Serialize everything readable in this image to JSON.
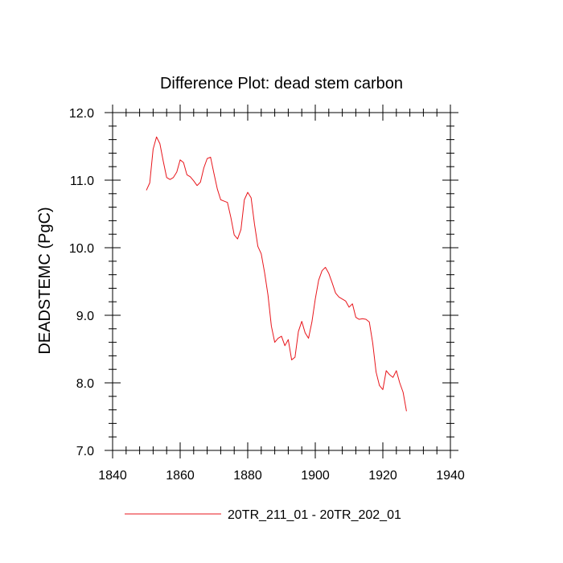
{
  "chart_data": {
    "type": "line",
    "title": "Difference Plot: dead stem carbon",
    "xlabel": "",
    "ylabel": "DEADSTEMC  (PgC)",
    "xlim": [
      1840,
      1940
    ],
    "ylim": [
      7.0,
      12.0
    ],
    "x_ticks": [
      1840,
      1860,
      1880,
      1900,
      1920,
      1940
    ],
    "x_tick_labels": [
      "1840",
      "1860",
      "1880",
      "1900",
      "1920",
      "1940"
    ],
    "y_ticks": [
      7.0,
      8.0,
      9.0,
      10.0,
      11.0,
      12.0
    ],
    "y_tick_labels": [
      "7.0",
      "8.0",
      "9.0",
      "10.0",
      "11.0",
      "12.0"
    ],
    "grid": false,
    "legend_position": "bottom-center",
    "series": [
      {
        "name": "20TR_211_01 - 20TR_202_01",
        "color": "#e8161c",
        "x": [
          1850,
          1851,
          1852,
          1853,
          1854,
          1855,
          1856,
          1857,
          1858,
          1859,
          1860,
          1861,
          1862,
          1863,
          1864,
          1865,
          1866,
          1867,
          1868,
          1869,
          1870,
          1871,
          1872,
          1873,
          1874,
          1875,
          1876,
          1877,
          1878,
          1879,
          1880,
          1881,
          1882,
          1883,
          1884,
          1885,
          1886,
          1887,
          1888,
          1889,
          1890,
          1891,
          1892,
          1893,
          1894,
          1895,
          1896,
          1897,
          1898,
          1899,
          1900,
          1901,
          1902,
          1903,
          1904,
          1905,
          1906,
          1907,
          1908,
          1909,
          1910,
          1911,
          1912,
          1913,
          1914,
          1915,
          1916,
          1917,
          1918,
          1919,
          1920,
          1921,
          1922,
          1923,
          1924,
          1925,
          1926,
          1927
        ],
        "values": [
          10.85,
          10.96,
          11.46,
          11.64,
          11.54,
          11.28,
          11.04,
          11.01,
          11.04,
          11.12,
          11.3,
          11.26,
          11.08,
          11.05,
          10.99,
          10.92,
          10.97,
          11.18,
          11.32,
          11.34,
          11.1,
          10.87,
          10.71,
          10.69,
          10.67,
          10.45,
          10.19,
          10.13,
          10.27,
          10.71,
          10.82,
          10.74,
          10.35,
          10.02,
          9.91,
          9.63,
          9.3,
          8.84,
          8.6,
          8.66,
          8.69,
          8.55,
          8.64,
          8.34,
          8.38,
          8.76,
          8.91,
          8.74,
          8.66,
          8.9,
          9.24,
          9.52,
          9.66,
          9.71,
          9.62,
          9.48,
          9.33,
          9.27,
          9.24,
          9.21,
          9.12,
          9.17,
          8.97,
          8.94,
          8.95,
          8.94,
          8.9,
          8.59,
          8.16,
          7.96,
          7.9,
          8.18,
          8.12,
          8.08,
          8.18,
          8.0,
          7.86,
          7.58
        ]
      }
    ]
  }
}
